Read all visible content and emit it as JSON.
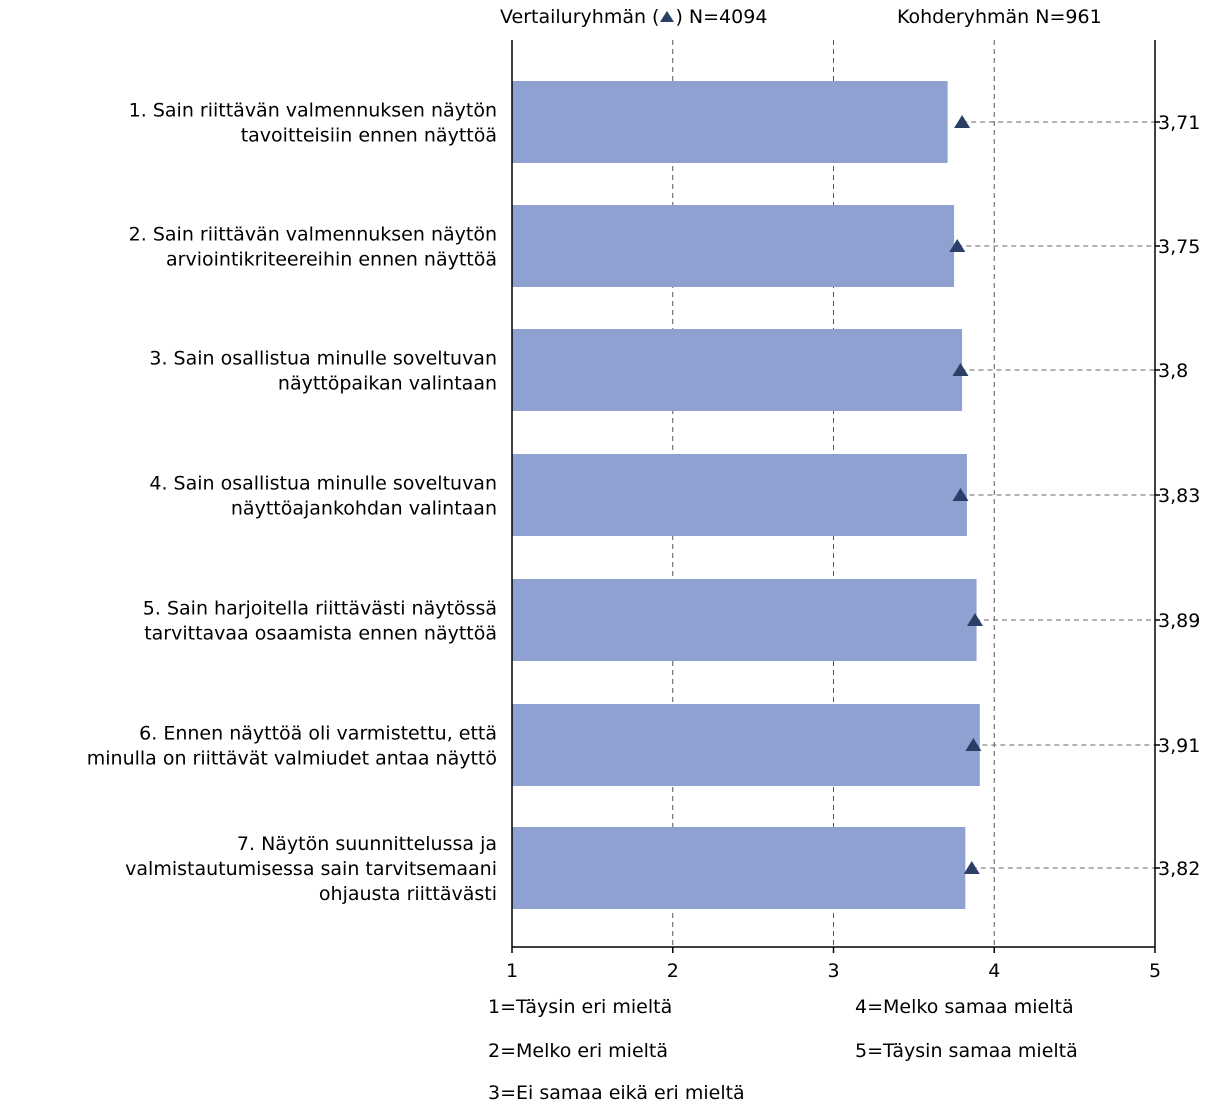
{
  "header": {
    "reference_prefix": "Vertailuryhmän (",
    "reference_suffix": ") N=4094",
    "target_label": "Kohderyhmän N=961"
  },
  "chart_data": {
    "type": "bar",
    "orientation": "horizontal",
    "xlim": [
      1,
      5
    ],
    "x_ticks": [
      "1",
      "2",
      "3",
      "4",
      "5"
    ],
    "grid": "vertical dashed",
    "categories": [
      [
        "1. Sain riittävän valmennuksen näytön",
        "tavoitteisiin ennen näyttöä"
      ],
      [
        "2. Sain riittävän valmennuksen näytön",
        "arviointikriteereihin ennen näyttöä"
      ],
      [
        "3. Sain osallistua minulle soveltuvan",
        "näyttöpaikan valintaan"
      ],
      [
        "4. Sain osallistua minulle soveltuvan",
        "näyttöajankohdan valintaan"
      ],
      [
        "5. Sain harjoitella riittävästi näytössä",
        "tarvittavaa osaamista ennen näyttöä"
      ],
      [
        "6. Ennen näyttöä oli varmistettu, että",
        "minulla on riittävät valmiudet antaa näyttö"
      ],
      [
        "7. Näytön suunnittelussa ja",
        "valmistautumisessa sain tarvitsemaani",
        "ohjausta riittävästi"
      ]
    ],
    "series": [
      {
        "values": [
          3.71,
          3.75,
          3.8,
          3.83,
          3.89,
          3.91,
          3.82
        ]
      },
      {
        "marker": "triangle",
        "values": [
          3.8,
          3.77,
          3.79,
          3.79,
          3.88,
          3.87,
          3.86
        ]
      }
    ],
    "value_labels": [
      "3,71",
      "3,75",
      "3,8",
      "3,83",
      "3,89",
      "3,91",
      "3,82"
    ],
    "bar_color": "#8fa1d0",
    "marker_color": "#2b3f66"
  },
  "legend": {
    "items": [
      "1=Täysin eri mieltä",
      "2=Melko eri mieltä",
      "3=Ei samaa eikä eri mieltä",
      "4=Melko samaa mieltä",
      "5=Täysin samaa mieltä"
    ]
  }
}
